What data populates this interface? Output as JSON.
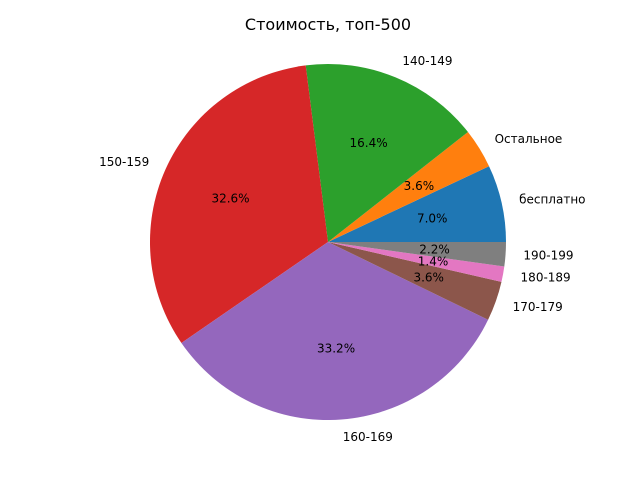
{
  "chart_data": {
    "type": "pie",
    "title": "Стоимость, топ-500",
    "slices": [
      {
        "label": "бесплатно",
        "value": 7.0,
        "pct_label": "7.0%",
        "color": "#1f77b4"
      },
      {
        "label": "Остальное",
        "value": 3.6,
        "pct_label": "3.6%",
        "color": "#ff7f0e"
      },
      {
        "label": "140-149",
        "value": 16.4,
        "pct_label": "16.4%",
        "color": "#2ca02c"
      },
      {
        "label": "150-159",
        "value": 32.6,
        "pct_label": "32.6%",
        "color": "#d62728"
      },
      {
        "label": "160-169",
        "value": 33.2,
        "pct_label": "33.2%",
        "color": "#9467bd"
      },
      {
        "label": "170-179",
        "value": 3.6,
        "pct_label": "3.6%",
        "color": "#8c564b"
      },
      {
        "label": "180-189",
        "value": 1.4,
        "pct_label": "1.4%",
        "color": "#e377c2"
      },
      {
        "label": "190-199",
        "value": 2.2,
        "pct_label": "2.2%",
        "color": "#7f7f7f"
      }
    ],
    "start_angle_deg": 0,
    "direction": "counterclockwise",
    "legend": "none"
  }
}
